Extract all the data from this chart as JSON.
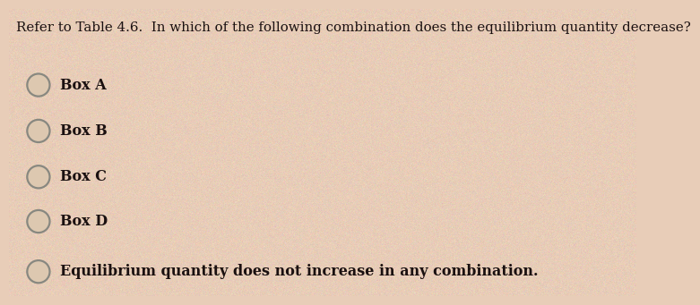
{
  "question": "Refer to Table 4.6.  In which of the following combination does the equilibrium quantity decrease?",
  "options": [
    "Box A",
    "Box B",
    "Box C",
    "Box D",
    "Equilibrium quantity does not increase in any combination."
  ],
  "bg_color": "#e8cdb8",
  "text_color": "#1a1010",
  "question_fontsize": 10.8,
  "option_fontsize": 11.5,
  "circle_edge_color": "#888880",
  "circle_face_color": "#ddc8b0"
}
